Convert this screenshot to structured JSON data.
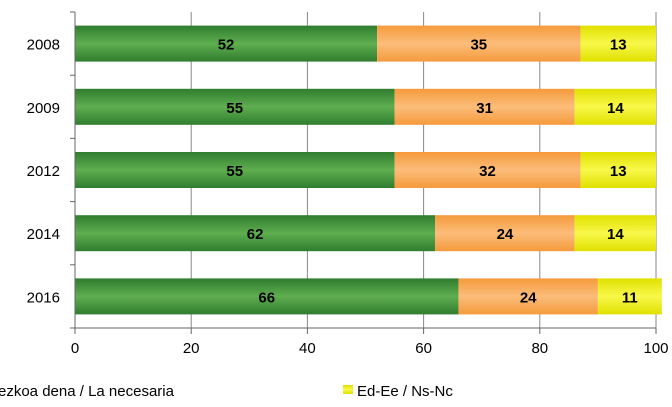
{
  "chart_data": {
    "type": "bar",
    "orientation": "horizontal",
    "stacked": true,
    "categories": [
      "2008",
      "2009",
      "2012",
      "2014",
      "2016"
    ],
    "series": [
      {
        "name": "ezkoa dena / La necesaria",
        "color": "#3a8a3a",
        "values": [
          52,
          55,
          55,
          62,
          66
        ]
      },
      {
        "name": "",
        "color": "#f6a24a",
        "values": [
          35,
          31,
          32,
          24,
          24
        ]
      },
      {
        "name": "Ed-Ee / Ns-Nc",
        "color": "#ecec00",
        "values": [
          13,
          14,
          13,
          14,
          11
        ]
      }
    ],
    "xlim": [
      0,
      100
    ],
    "xticks": [
      "0",
      "20",
      "40",
      "60",
      "80",
      "100"
    ],
    "grid": true,
    "legend_position": "bottom"
  }
}
